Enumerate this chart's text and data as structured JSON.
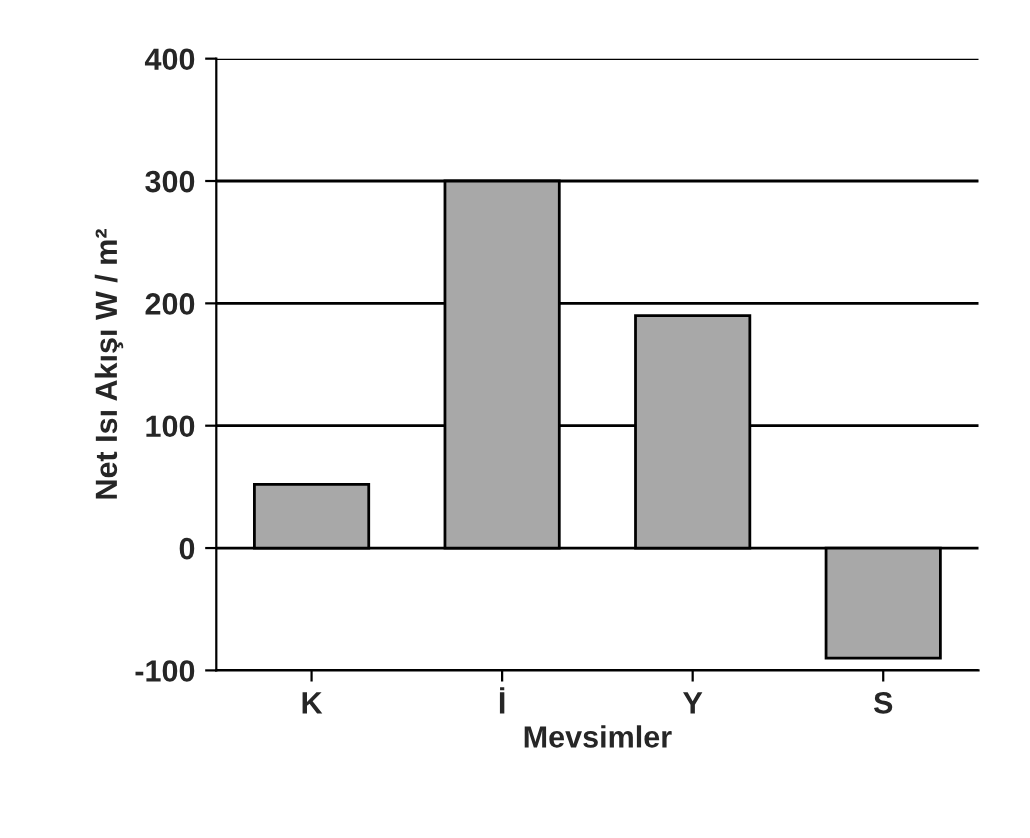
{
  "chart_data": {
    "type": "bar",
    "xlabel": "Mevsimler",
    "ylabel": "Net Isı Akışı W / m²",
    "categories": [
      "K",
      "İ",
      "Y",
      "S"
    ],
    "values": [
      52,
      300,
      190,
      -90
    ],
    "color": "#a8a8a8",
    "ylim": [
      -100,
      400
    ],
    "yticks": [
      -100,
      0,
      100,
      200,
      300,
      400
    ],
    "grid": "y",
    "legend": false
  }
}
